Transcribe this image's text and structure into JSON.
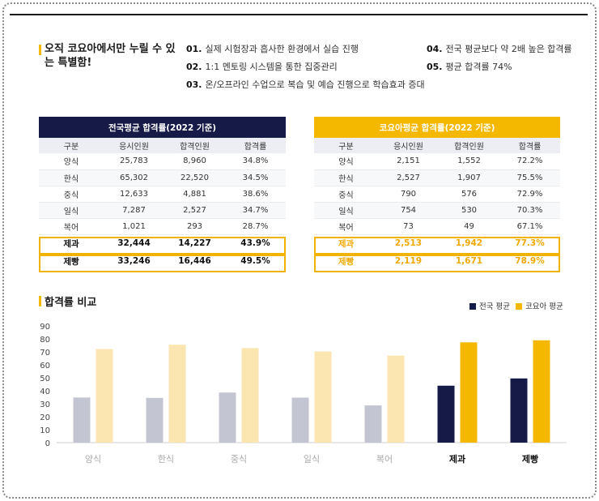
{
  "headline": "오직 코요아에서만 누릴 수 있는 특별함!",
  "features": [
    {
      "num": "01.",
      "text": "실제 시험장과 흡사한 환경에서 실습 진행"
    },
    {
      "num": "02.",
      "text": "1:1 멘토링 시스템을 통한 집중관리"
    },
    {
      "num": "03.",
      "text": "온/오프라인 수업으로 복습 및 예습 진행으로 학습효과 증대"
    },
    {
      "num": "04.",
      "text": "전국 평균보다 약 2배 높은 합격률"
    },
    {
      "num": "05.",
      "text": "평균 합격률 74%"
    }
  ],
  "colors": {
    "navy": "#151a47",
    "gold": "#f5b800",
    "grey": "#c4c5d2",
    "paleGold": "#fbe6b2"
  },
  "national_table": {
    "title": "전국평균 합격률(2022 기준)",
    "headers": [
      "구분",
      "응시인원",
      "합격인원",
      "합격률"
    ],
    "rows": [
      [
        "양식",
        "25,783",
        "8,960",
        "34.8%"
      ],
      [
        "한식",
        "65,302",
        "22,520",
        "34.5%"
      ],
      [
        "중식",
        "12,633",
        "4,881",
        "38.6%"
      ],
      [
        "일식",
        "7,287",
        "2,527",
        "34.7%"
      ],
      [
        "복어",
        "1,021",
        "293",
        "28.7%"
      ],
      [
        "제과",
        "32,444",
        "14,227",
        "43.9%"
      ],
      [
        "제빵",
        "33,246",
        "16,446",
        "49.5%"
      ]
    ]
  },
  "koyoa_table": {
    "title": "코요아평균 합격률(2022 기준)",
    "headers": [
      "구분",
      "응시인원",
      "합격인원",
      "합격률"
    ],
    "rows": [
      [
        "양식",
        "2,151",
        "1,552",
        "72.2%"
      ],
      [
        "한식",
        "2,527",
        "1,907",
        "75.5%"
      ],
      [
        "중식",
        "790",
        "576",
        "72.9%"
      ],
      [
        "일식",
        "754",
        "530",
        "70.3%"
      ],
      [
        "복어",
        "73",
        "49",
        "67.1%"
      ],
      [
        "제과",
        "2,513",
        "1,942",
        "77.3%"
      ],
      [
        "제빵",
        "2,119",
        "1,671",
        "78.9%"
      ]
    ]
  },
  "chart_data": {
    "type": "bar",
    "title": "합격률 비교",
    "categories": [
      "양식",
      "한식",
      "중식",
      "일식",
      "복어",
      "제과",
      "제빵"
    ],
    "series": [
      {
        "name": "전국 평균",
        "values": [
          34.8,
          34.5,
          38.6,
          34.7,
          28.7,
          43.9,
          49.5
        ]
      },
      {
        "name": "코요아 평균",
        "values": [
          72.2,
          75.5,
          72.9,
          70.3,
          67.1,
          77.3,
          78.9
        ]
      }
    ],
    "yticks": [
      0,
      10,
      20,
      30,
      40,
      50,
      60,
      70,
      80,
      90
    ],
    "ylim": [
      0,
      90
    ],
    "highlighted_categories": [
      "제과",
      "제빵"
    ],
    "legend_position": "top-right",
    "grid": false
  }
}
